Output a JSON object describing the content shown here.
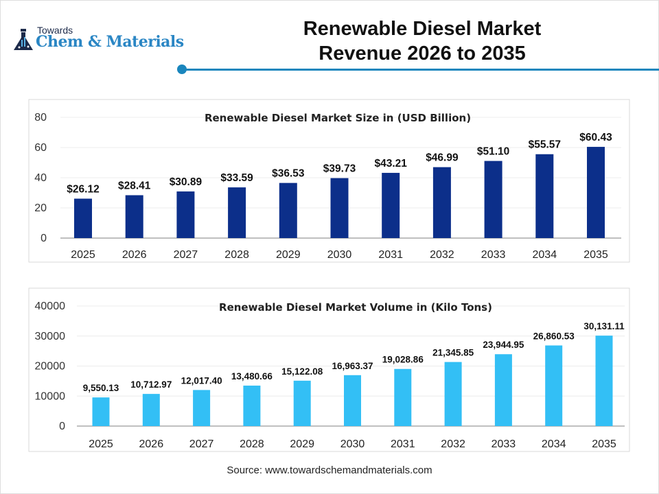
{
  "logo": {
    "line1": "Towards",
    "line2": "Chem & Materials"
  },
  "header": {
    "title_line1": "Renewable Diesel Market",
    "title_line2": "Revenue 2026 to 2035",
    "accent_color": "#1a86bd"
  },
  "source": "Source: www.towardschemandmaterials.com",
  "chart_data": [
    {
      "type": "bar",
      "title": "Renewable Diesel Market  Size in (USD Billion)",
      "categories": [
        "2025",
        "2026",
        "2027",
        "2028",
        "2029",
        "2030",
        "2031",
        "2032",
        "2033",
        "2034",
        "2035"
      ],
      "values": [
        26.12,
        28.41,
        30.89,
        33.59,
        36.53,
        39.73,
        43.21,
        46.99,
        51.1,
        55.57,
        60.43
      ],
      "data_labels": [
        "$26.12",
        "$28.41",
        "$30.89",
        "$33.59",
        "$36.53",
        "$39.73",
        "$43.21",
        "$46.99",
        "$51.10",
        "$55.57",
        "$60.43"
      ],
      "ylim": [
        0,
        80
      ],
      "yticks": [
        "0",
        "20",
        "40",
        "60",
        "80"
      ],
      "grid": true,
      "legend": "none",
      "color": "#0c2f8a"
    },
    {
      "type": "bar",
      "title": "Renewable Diesel Market Volume in (Kilo Tons)",
      "categories": [
        "2025",
        "2026",
        "2027",
        "2028",
        "2029",
        "2030",
        "2031",
        "2032",
        "2033",
        "2034",
        "2035"
      ],
      "values": [
        9550.13,
        10712.97,
        12017.4,
        13480.66,
        15122.08,
        16963.37,
        19028.86,
        21345.85,
        23944.95,
        26860.53,
        30131.11
      ],
      "data_labels": [
        "9,550.13",
        "10,712.97",
        "12,017.40",
        "13,480.66",
        "15,122.08",
        "16,963.37",
        "19,028.86",
        "21,345.85",
        "23,944.95",
        "26,860.53",
        "30,131.11"
      ],
      "ylim": [
        0,
        40000
      ],
      "yticks": [
        "0",
        "10000",
        "20000",
        "30000",
        "40000"
      ],
      "grid": true,
      "legend": "none",
      "color": "#33bff5"
    }
  ]
}
